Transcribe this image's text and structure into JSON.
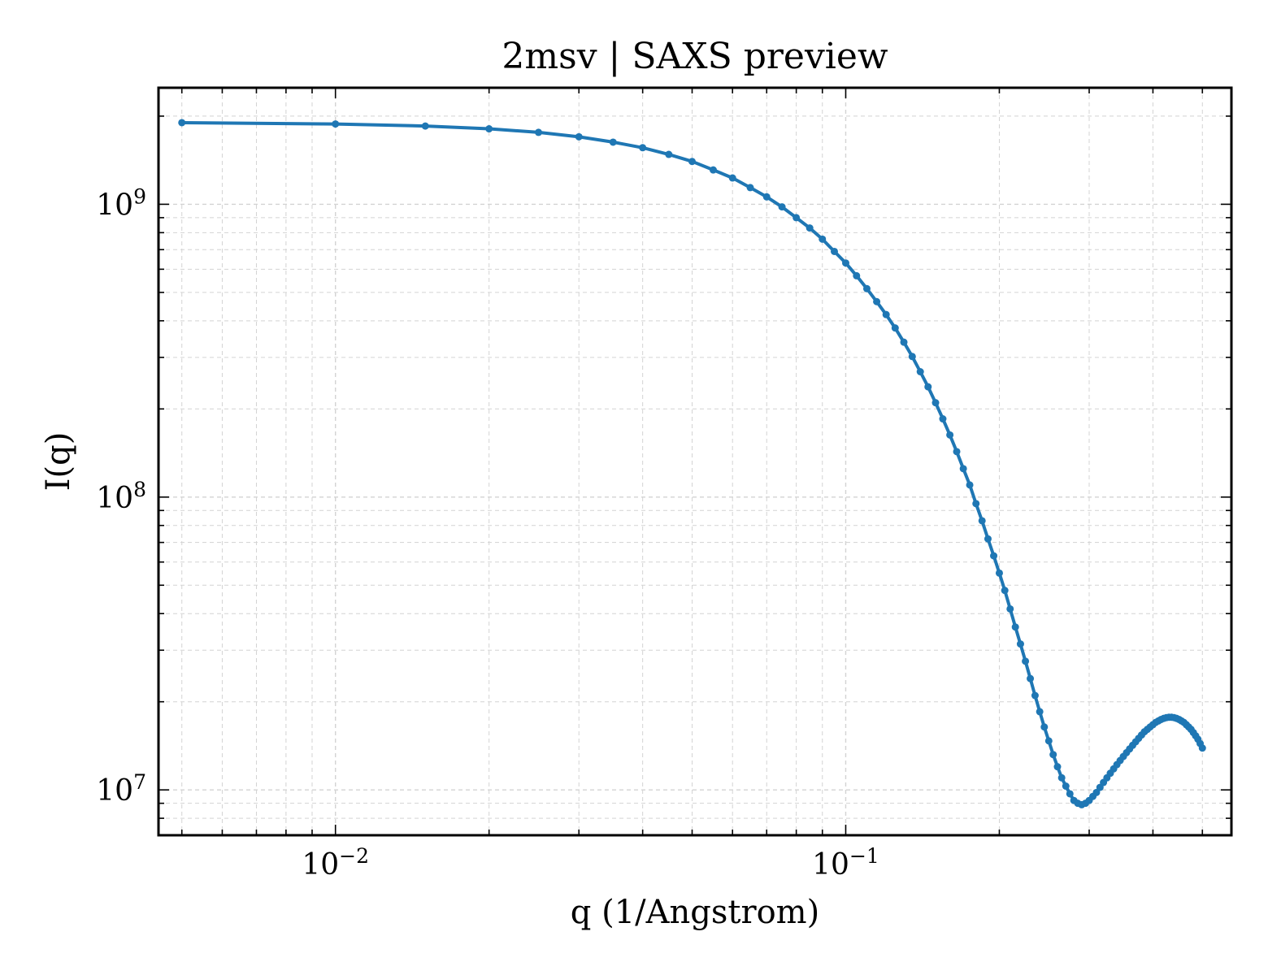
{
  "chart_data": {
    "type": "line",
    "title": "2msv | SAXS preview",
    "xlabel": "q (1/Angstrom)",
    "ylabel": "I(q)",
    "xscale": "log",
    "yscale": "log",
    "xlim": [
      0.0045,
      0.57
    ],
    "ylim": [
      7000000,
      2500000000
    ],
    "x_ticks": [
      {
        "value": 0.01,
        "base": "10",
        "exp": "−2"
      },
      {
        "value": 0.1,
        "base": "10",
        "exp": "−1"
      }
    ],
    "y_ticks": [
      {
        "value": 10000000,
        "base": "10",
        "exp": "7"
      },
      {
        "value": 100000000,
        "base": "10",
        "exp": "8"
      },
      {
        "value": 1000000000,
        "base": "10",
        "exp": "9"
      }
    ],
    "grid": true,
    "marker": "circle",
    "color": "#1f77b4",
    "series": [
      {
        "x": [
          0.005,
          0.01,
          0.015,
          0.02,
          0.025,
          0.03,
          0.035,
          0.04,
          0.045,
          0.05,
          0.055,
          0.06,
          0.065,
          0.07,
          0.075,
          0.08,
          0.085,
          0.09,
          0.095,
          0.1,
          0.105,
          0.11,
          0.115,
          0.12,
          0.125,
          0.13,
          0.135,
          0.14,
          0.145,
          0.15,
          0.155,
          0.16,
          0.165,
          0.17,
          0.175,
          0.18,
          0.185,
          0.19,
          0.195,
          0.2,
          0.205,
          0.21,
          0.215,
          0.22,
          0.225,
          0.23,
          0.235,
          0.24,
          0.245,
          0.25,
          0.255,
          0.26,
          0.265,
          0.27,
          0.275,
          0.28,
          0.285,
          0.29,
          0.295,
          0.3,
          0.305,
          0.31,
          0.315,
          0.32,
          0.325,
          0.33,
          0.335,
          0.34,
          0.345,
          0.35,
          0.355,
          0.36,
          0.365,
          0.37,
          0.375,
          0.38,
          0.385,
          0.39,
          0.395,
          0.4,
          0.405,
          0.41,
          0.415,
          0.42,
          0.425,
          0.43,
          0.435,
          0.44,
          0.445,
          0.45,
          0.455,
          0.46,
          0.465,
          0.47,
          0.475,
          0.48,
          0.485,
          0.49,
          0.495,
          0.5
        ],
        "y": [
          1900000000,
          1880000000,
          1850000000,
          1810000000,
          1760000000,
          1700000000,
          1630000000,
          1560000000,
          1480000000,
          1400000000,
          1310000000,
          1230000000,
          1140000000,
          1060000000,
          980000000,
          900000000,
          830000000,
          760000000,
          690000000,
          630000000,
          570000000,
          515000000,
          465000000,
          420000000,
          378000000,
          338000000,
          302000000,
          268000000,
          238000000,
          210000000,
          185000000,
          163000000,
          143000000,
          125000000,
          110000000,
          95000000,
          83000000,
          72000000,
          63000000,
          55000000,
          48000000,
          41500000,
          36000000,
          31500000,
          27500000,
          24000000,
          21000000,
          18500000,
          16400000,
          14700000,
          13200000,
          12000000,
          11000000,
          10300000,
          9700000,
          9200000,
          9000000,
          8900000,
          9000000,
          9200000,
          9500000,
          9800000,
          10200000,
          10600000,
          11000000,
          11400000,
          11800000,
          12200000,
          12600000,
          13000000,
          13400000,
          13800000,
          14200000,
          14600000,
          15000000,
          15400000,
          15800000,
          16100000,
          16400000,
          16700000,
          17000000,
          17200000,
          17400000,
          17550000,
          17650000,
          17700000,
          17700000,
          17650000,
          17550000,
          17400000,
          17200000,
          17000000,
          16700000,
          16400000,
          16100000,
          15700000,
          15300000,
          14900000,
          14400000,
          13900000
        ]
      }
    ]
  }
}
